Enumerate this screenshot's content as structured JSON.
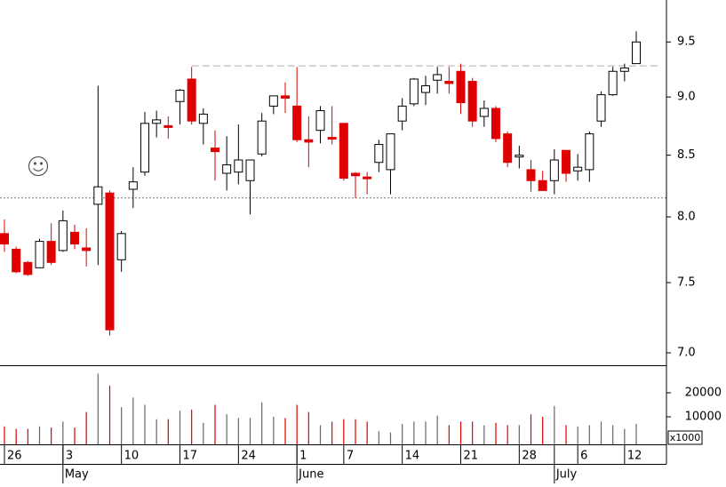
{
  "chart_data": {
    "type": "candlestick",
    "categories": [
      "26",
      null,
      null,
      null,
      null,
      "3",
      null,
      null,
      null,
      null,
      "10",
      null,
      null,
      null,
      null,
      "17",
      null,
      null,
      null,
      null,
      "24",
      null,
      null,
      null,
      null,
      "1",
      null,
      null,
      null,
      "7",
      null,
      null,
      null,
      null,
      "14",
      null,
      null,
      null,
      null,
      "21",
      null,
      null,
      null,
      null,
      "28",
      null,
      null,
      null,
      null,
      "6",
      null,
      null,
      null,
      "12",
      null
    ],
    "months": [
      {
        "label": "May",
        "index": 5
      },
      {
        "label": "June",
        "index": 25
      },
      {
        "label": "July",
        "index": 47
      }
    ],
    "open": [
      7.87,
      7.75,
      7.65,
      7.61,
      7.81,
      7.74,
      7.88,
      7.76,
      8.1,
      8.19,
      7.67,
      8.22,
      8.36,
      8.77,
      8.75,
      8.96,
      9.16,
      8.77,
      8.56,
      8.35,
      8.36,
      8.29,
      8.51,
      8.92,
      9.01,
      8.92,
      8.63,
      8.71,
      8.65,
      8.77,
      8.35,
      8.32,
      8.44,
      8.38,
      8.79,
      8.94,
      9.04,
      9.15,
      9.14,
      9.23,
      9.14,
      8.83,
      8.9,
      8.68,
      8.49,
      8.38,
      8.29,
      8.29,
      8.54,
      8.37,
      8.38,
      8.79,
      9.02,
      9.23,
      9.3
    ],
    "high": [
      7.98,
      7.77,
      7.66,
      7.83,
      7.95,
      8.05,
      7.94,
      7.91,
      9.1,
      8.21,
      7.89,
      8.4,
      8.87,
      8.88,
      8.83,
      9.07,
      9.27,
      8.9,
      8.71,
      8.66,
      8.76,
      8.46,
      8.86,
      9.01,
      9.13,
      9.27,
      8.83,
      8.92,
      8.92,
      8.77,
      8.36,
      8.36,
      8.63,
      8.68,
      8.99,
      9.17,
      9.19,
      9.27,
      9.27,
      9.3,
      9.17,
      8.97,
      8.92,
      8.7,
      8.58,
      8.46,
      8.37,
      8.55,
      8.54,
      8.51,
      8.7,
      9.05,
      9.27,
      9.3,
      9.6
    ],
    "low": [
      7.73,
      7.57,
      7.55,
      7.61,
      7.63,
      7.73,
      7.75,
      7.62,
      7.63,
      7.12,
      7.58,
      8.07,
      8.33,
      8.65,
      8.64,
      8.76,
      8.76,
      8.59,
      8.29,
      8.21,
      8.26,
      8.02,
      8.49,
      8.85,
      8.86,
      8.61,
      8.4,
      8.6,
      8.59,
      8.29,
      8.15,
      8.18,
      8.36,
      8.18,
      8.71,
      8.92,
      8.93,
      9.03,
      9.03,
      8.85,
      8.74,
      8.74,
      8.61,
      8.4,
      8.39,
      8.2,
      8.21,
      8.18,
      8.28,
      8.29,
      8.28,
      8.74,
      9.01,
      9.14,
      9.3
    ],
    "close": [
      7.79,
      7.58,
      7.56,
      7.81,
      7.65,
      7.97,
      7.79,
      7.74,
      8.24,
      7.16,
      7.87,
      8.28,
      8.77,
      8.8,
      8.74,
      9.06,
      8.79,
      8.85,
      8.53,
      8.42,
      8.46,
      8.46,
      8.79,
      9.01,
      8.99,
      8.63,
      8.61,
      8.88,
      8.64,
      8.31,
      8.33,
      8.31,
      8.59,
      8.68,
      8.92,
      9.16,
      9.1,
      9.2,
      9.12,
      8.95,
      8.79,
      8.9,
      8.64,
      8.44,
      8.5,
      8.29,
      8.21,
      8.46,
      8.35,
      8.4,
      8.68,
      9.02,
      9.23,
      9.26,
      9.5
    ],
    "volume": [
      6000,
      5000,
      5000,
      6000,
      5500,
      8000,
      5500,
      12000,
      28000,
      23000,
      14000,
      18000,
      15000,
      9000,
      9000,
      12500,
      13000,
      7500,
      15000,
      11000,
      9500,
      9500,
      16000,
      10000,
      9500,
      15000,
      12000,
      6500,
      8000,
      9000,
      9000,
      8000,
      4000,
      3500,
      7000,
      8000,
      8000,
      10500,
      6500,
      8000,
      8000,
      6500,
      7500,
      6500,
      6500,
      11000,
      10000,
      14500,
      6500,
      6000,
      6500,
      8000,
      6500,
      5000,
      7000
    ],
    "log_scale": true,
    "ylim": [
      6.915,
      9.9
    ],
    "yticks": [
      {
        "value": 7.0,
        "label": "7.0"
      },
      {
        "value": 7.5,
        "label": "7.5"
      },
      {
        "value": 8.0,
        "label": "8.0"
      },
      {
        "value": 8.5,
        "label": "8.5"
      },
      {
        "value": 9.0,
        "label": "9.0"
      },
      {
        "value": 9.5,
        "label": "9.5"
      }
    ],
    "volume_lim": [
      0,
      31100
    ],
    "volume_ticks": [
      10000,
      20000
    ],
    "volume_unit_label": "x1000",
    "up_color": "#ffffff",
    "down_color": "#e00000",
    "resistance": {
      "value": 9.28,
      "from": 16
    },
    "support": 8.15
  }
}
